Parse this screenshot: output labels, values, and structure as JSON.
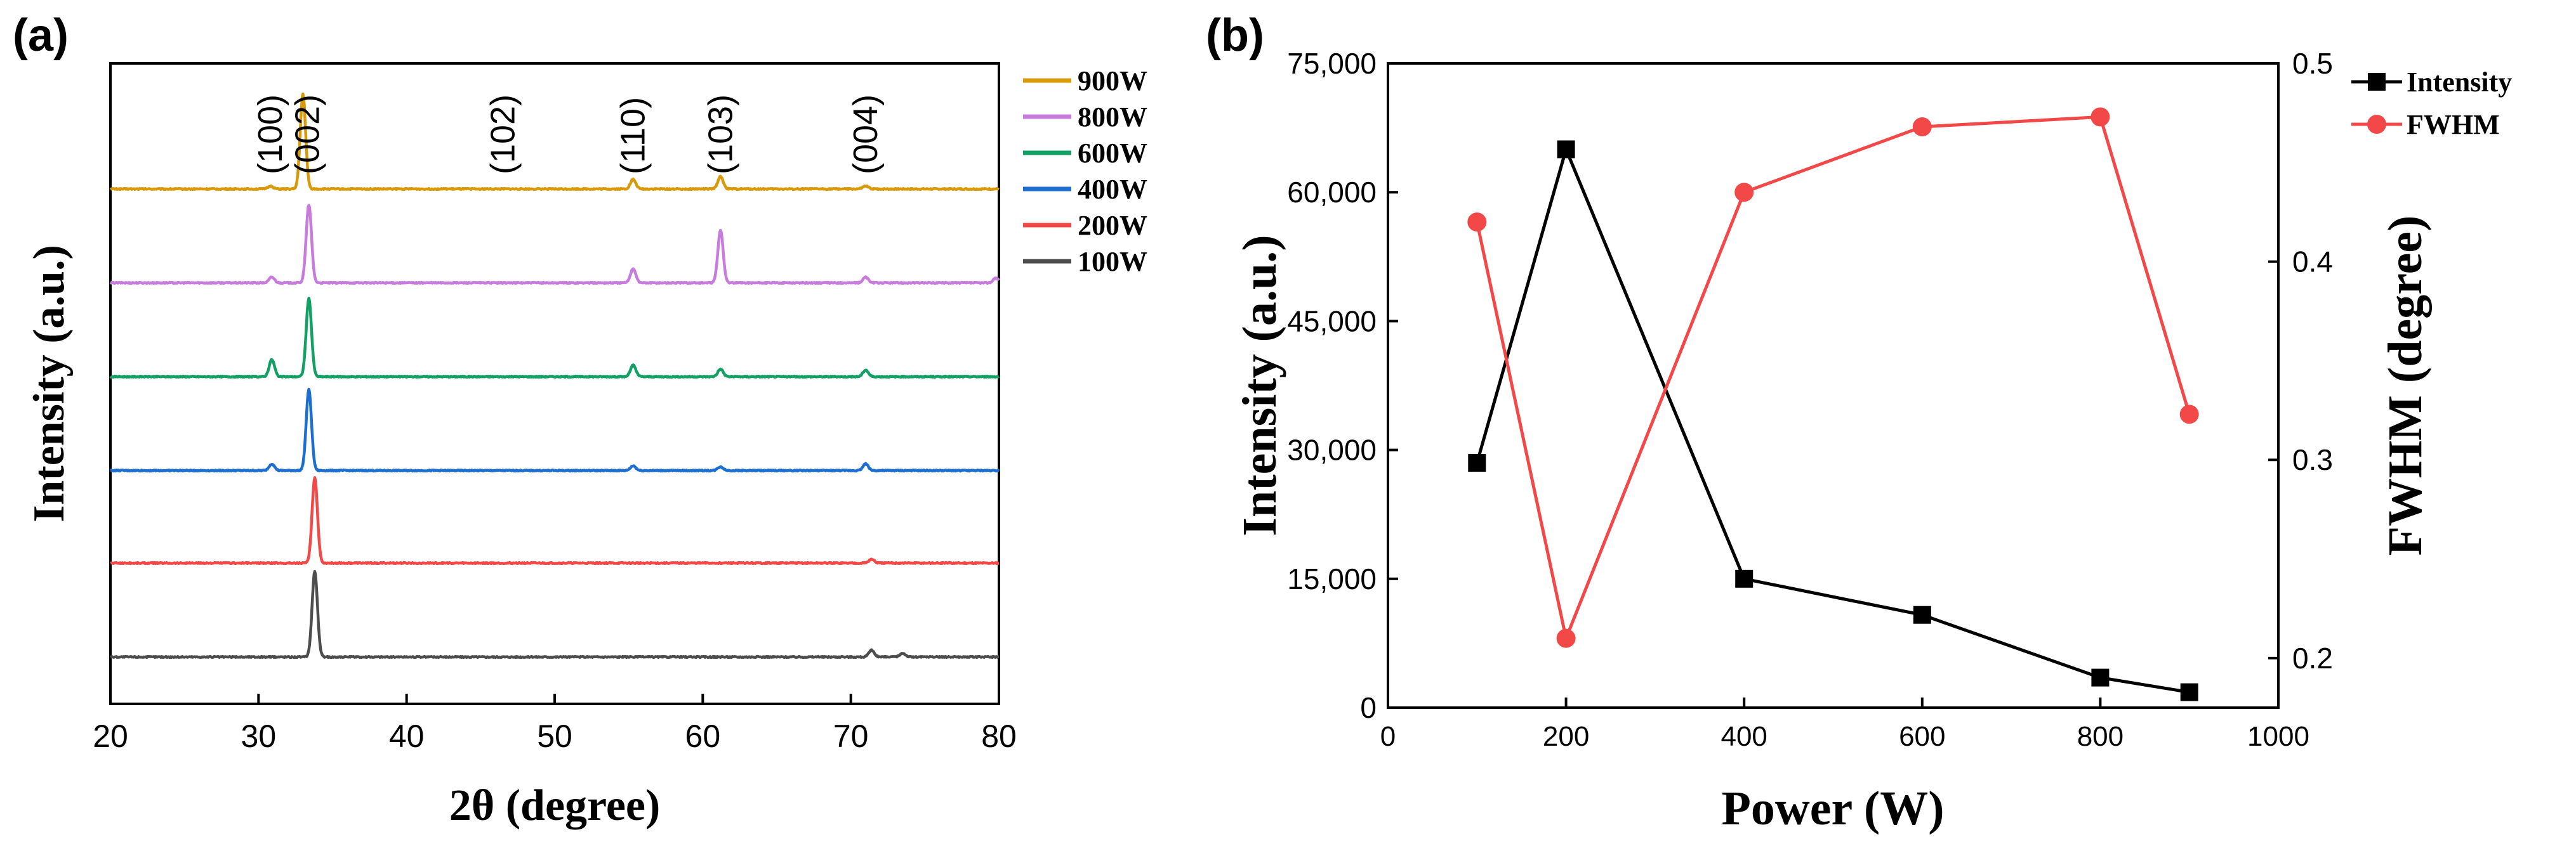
{
  "chart_data": [
    {
      "panel_label": "(a)",
      "type": "line",
      "xlabel": "2θ (degree)",
      "ylabel": "Intensity (a.u.)",
      "xlim": [
        20,
        80
      ],
      "xticks": [
        "20",
        "30",
        "40",
        "50",
        "60",
        "70",
        "80"
      ],
      "y_ticks_shown": false,
      "peak_labels": [
        {
          "text": "(100)",
          "x": 30.8
        },
        {
          "text": "(002)",
          "x": 33.3
        },
        {
          "text": "(102)",
          "x": 46.5
        },
        {
          "text": "(110)",
          "x": 55.3
        },
        {
          "text": "(103)",
          "x": 61.2
        },
        {
          "text": "(004)",
          "x": 71.0
        }
      ],
      "legend": {
        "position": "outside-right",
        "entries": [
          "900W",
          "800W",
          "600W",
          "400W",
          "200W",
          "100W"
        ]
      },
      "series": [
        {
          "name": "900W",
          "color": "#d99a0a",
          "peaks": [
            [
              30.8,
              0.03
            ],
            [
              33.0,
              1.0
            ],
            [
              55.3,
              0.1
            ],
            [
              61.2,
              0.13
            ],
            [
              71.0,
              0.03
            ]
          ]
        },
        {
          "name": "800W",
          "color": "#c77bdc",
          "peaks": [
            [
              30.9,
              0.06
            ],
            [
              33.4,
              0.82
            ],
            [
              55.3,
              0.15
            ],
            [
              61.2,
              0.55
            ],
            [
              71.0,
              0.06
            ],
            [
              79.8,
              0.05
            ]
          ]
        },
        {
          "name": "600W",
          "color": "#12a064",
          "peaks": [
            [
              30.9,
              0.18
            ],
            [
              33.4,
              0.82
            ],
            [
              55.3,
              0.12
            ],
            [
              61.2,
              0.08
            ],
            [
              71.0,
              0.07
            ]
          ]
        },
        {
          "name": "400W",
          "color": "#1c6fd1",
          "peaks": [
            [
              30.9,
              0.07
            ],
            [
              33.4,
              0.85
            ],
            [
              55.3,
              0.05
            ],
            [
              61.2,
              0.04
            ],
            [
              71.0,
              0.07
            ]
          ]
        },
        {
          "name": "200W",
          "color": "#f24848",
          "peaks": [
            [
              33.8,
              0.9
            ],
            [
              71.4,
              0.04
            ]
          ]
        },
        {
          "name": "100W",
          "color": "#4d4d4d",
          "peaks": [
            [
              33.8,
              0.9
            ],
            [
              71.4,
              0.07
            ],
            [
              73.5,
              0.04
            ]
          ]
        }
      ]
    },
    {
      "panel_label": "(b)",
      "type": "line",
      "xlabel": "Power (W)",
      "ylabel": "Intensity (a.u.)",
      "y2label": "FWHM (degree)",
      "xlim": [
        0,
        1000
      ],
      "xticks": [
        "0",
        "200",
        "400",
        "600",
        "800",
        "1000"
      ],
      "ylim": [
        0,
        75000
      ],
      "yticks": [
        "0",
        "15,000",
        "30,000",
        "45,000",
        "60,000",
        "75,000"
      ],
      "y2lim": [
        0.175,
        0.5
      ],
      "y2ticks": [
        "0.2",
        "0.3",
        "0.4",
        "0.5"
      ],
      "legend": {
        "position": "outside-top-right",
        "entries": [
          "Intensity",
          "FWHM"
        ]
      },
      "series": [
        {
          "name": "Intensity",
          "color": "#000000",
          "marker": "square",
          "axis": "left",
          "x": [
            100,
            200,
            400,
            600,
            800,
            900
          ],
          "values": [
            28500,
            65000,
            15000,
            10800,
            3500,
            1800
          ]
        },
        {
          "name": "FWHM",
          "color": "#f24848",
          "marker": "circle",
          "axis": "right",
          "x": [
            100,
            200,
            400,
            600,
            800,
            900
          ],
          "values": [
            0.42,
            0.21,
            0.435,
            0.468,
            0.473,
            0.323
          ]
        }
      ]
    }
  ]
}
